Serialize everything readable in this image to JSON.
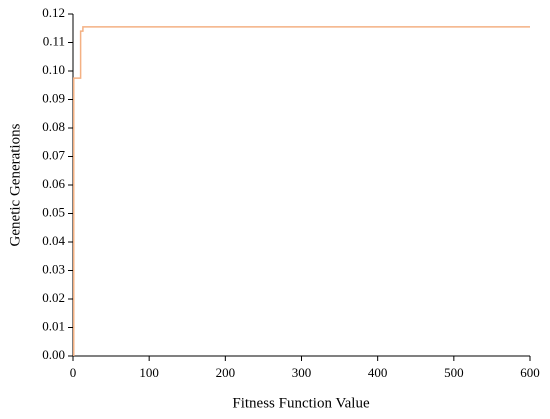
{
  "chart_data": {
    "type": "line",
    "xlabel": "Fitness Function Value",
    "ylabel": "Genetic Generations",
    "x": [
      1,
      1,
      10,
      10,
      13,
      13,
      600
    ],
    "series": [
      {
        "color": "#f4b183",
        "values": [
          0,
          0.0975,
          0.0975,
          0.114,
          0.114,
          0.1155,
          0.1155
        ]
      }
    ],
    "xlim": [
      0,
      600
    ],
    "xticks": [
      0,
      100,
      200,
      300,
      400,
      500,
      600
    ],
    "ylim": [
      0,
      0.12
    ],
    "yticks": [
      {
        "value": 0,
        "label": "0.00"
      },
      {
        "value": 0.01,
        "label": "0.01"
      },
      {
        "value": 0.02,
        "label": "0.02"
      },
      {
        "value": 0.03,
        "label": "0.03"
      },
      {
        "value": 0.04,
        "label": "0.04"
      },
      {
        "value": 0.05,
        "label": "0.05"
      },
      {
        "value": 0.06,
        "label": "0.06"
      },
      {
        "value": 0.07,
        "label": "0.07"
      },
      {
        "value": 0.08,
        "label": "0.08"
      },
      {
        "value": 0.09,
        "label": "0.09"
      },
      {
        "value": 0.1,
        "label": "0.10"
      },
      {
        "value": 0.11,
        "label": "0.11"
      },
      {
        "value": 0.12,
        "label": "0.12"
      }
    ]
  }
}
